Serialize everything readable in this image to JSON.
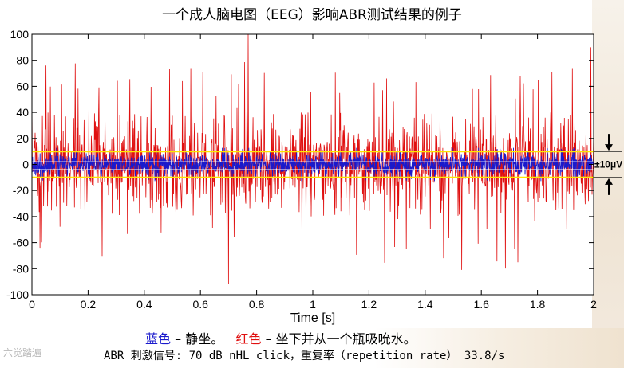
{
  "title": "一个成人脑电图（EEG）影响ABR测试结果的例子",
  "caption": {
    "blue_word": "蓝色",
    "sep1": " – ",
    "blue_desc": "静坐。",
    "red_word": "红色",
    "sep2": " – ",
    "red_desc": "坐下并从一个瓶吸吮水。"
  },
  "footer_note": "ABR 刺激信号: 70 dB nHL click，重复率（repetition rate） 33.8/s",
  "watermark": "六觉踏遍",
  "colors": {
    "blue": "#1a1acc",
    "red": "#e01010",
    "yellow": "#ffe600",
    "white": "#ffffff"
  },
  "chart_data": {
    "type": "line",
    "xlabel": "Time [s]",
    "ylabel": "",
    "xlim": [
      0,
      2
    ],
    "ylim": [
      -100,
      100
    ],
    "x_ticks": [
      "0",
      "0.2",
      "0.4",
      "0.6",
      "0.8",
      "1",
      "1.2",
      "1.4",
      "1.6",
      "1.8",
      "2"
    ],
    "y_ticks": [
      "100",
      "80",
      "60",
      "40",
      "20",
      "0",
      "-20",
      "-40",
      "-60",
      "-80",
      "-100"
    ],
    "grid": false,
    "series": [
      {
        "color": "#e01010",
        "approx_amplitude": 40,
        "peak_min": -92,
        "peak_max": 100
      },
      {
        "color": "#1a1acc",
        "approx_amplitude": 8
      }
    ],
    "reference_lines": [
      {
        "y": 10,
        "color": "#ffe600"
      },
      {
        "y": -10,
        "color": "#ffe600"
      },
      {
        "y": 2,
        "color": "#ffffff"
      },
      {
        "y": -4,
        "color": "#ffffff"
      }
    ],
    "annotation": {
      "text": "±10μV",
      "y": 0
    }
  }
}
